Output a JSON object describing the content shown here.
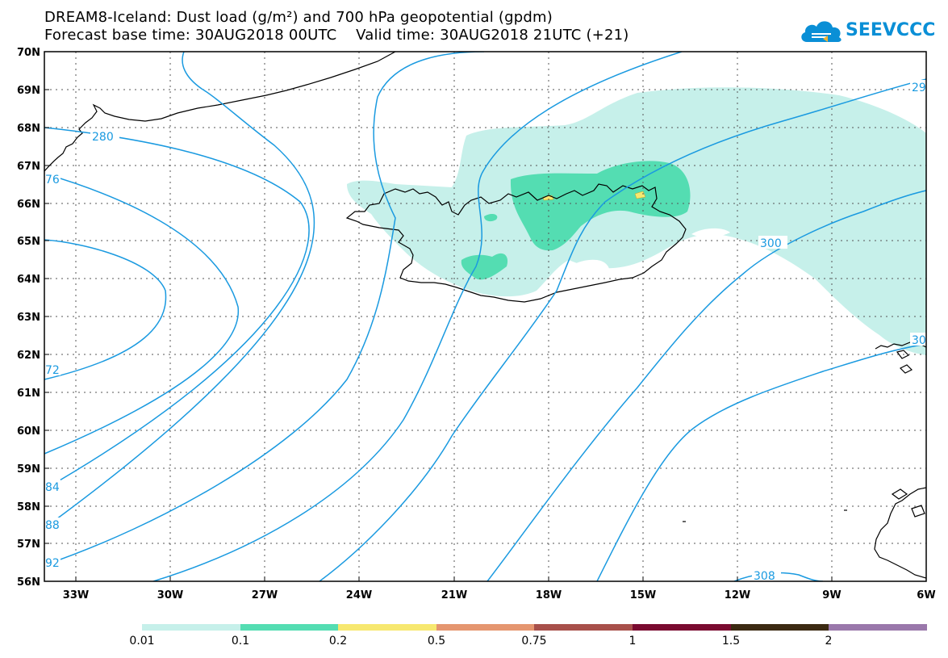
{
  "header": {
    "title_line1": "DREAM8-Iceland: Dust load (g/m²) and 700 hPa geopotential (gpdm)",
    "title_line2": "Forecast base time: 30AUG2018 00UTC    Valid time: 30AUG2018 21UTC (+21)"
  },
  "logo": {
    "text": "SEEVCCC",
    "icon": "cloud-icon",
    "color": "#0a8fd6"
  },
  "map": {
    "lat_labels": [
      "70N",
      "69N",
      "68N",
      "67N",
      "66N",
      "65N",
      "64N",
      "63N",
      "62N",
      "61N",
      "60N",
      "59N",
      "58N",
      "57N",
      "56N"
    ],
    "lon_labels": [
      "33W",
      "30W",
      "27W",
      "24W",
      "21W",
      "18W",
      "15W",
      "12W",
      "9W",
      "6W"
    ],
    "contour_labels": [
      "280",
      "300",
      "308",
      "29",
      "76",
      "72",
      "84",
      "88",
      "92",
      "30"
    ],
    "contour_color": "#1a9ae0",
    "land_outline_color": "#000000"
  },
  "colorbar": {
    "colors": [
      "#c6f0ea",
      "#54ddb2",
      "#f7e870",
      "#e59670",
      "#a8504b",
      "#7a0a30",
      "#3c2a12",
      "#9a78ab"
    ],
    "labels": [
      "0.01",
      "0.1",
      "0.2",
      "0.5",
      "0.75",
      "1",
      "1.5",
      "2"
    ]
  }
}
